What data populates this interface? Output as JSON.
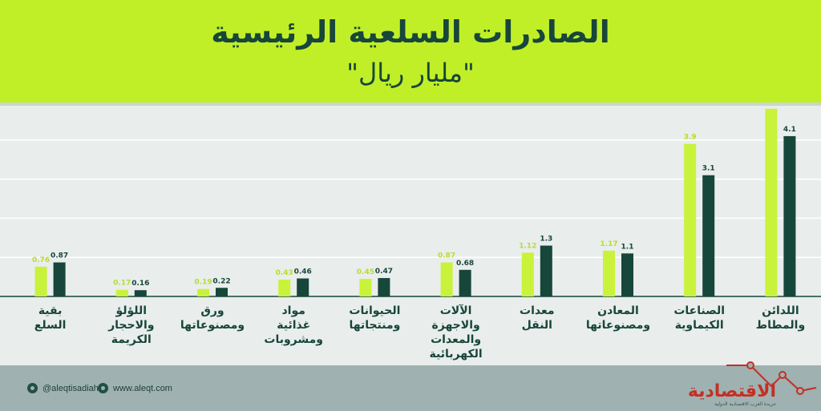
{
  "header": {
    "title": "الصادرات السلعية الرئيسية",
    "subtitle": "\"مليار ريال\""
  },
  "colors": {
    "header_bg": "#c1ef27",
    "series_2021": "#c9f23a",
    "series_2022": "#17463a",
    "footer_bg": "#9fb1b1",
    "brand": "#c42f24"
  },
  "chart_data": {
    "type": "bar",
    "title": "الصادرات السلعية الرئيسية",
    "subtitle": "\"مليار ريال\"",
    "categories": [
      "بقية السلع",
      "اللؤلؤ والاحجار الكريمة",
      "ورق ومصنوعاتها",
      "مواد غذائية ومشروبات",
      "الحيوانات ومنتجاتها",
      "الآلات والاجهزة والمعدات الكهربائية",
      "معدات النقل",
      "المعادن ومصنوعاتها",
      "الصناعات الكيماوية",
      "اللدائن والمطاط"
    ],
    "category_lines": [
      [
        "بقية",
        "السلع"
      ],
      [
        "اللؤلؤ",
        "والاحجار",
        "الكريمة"
      ],
      [
        "ورق",
        "ومصنوعاتها"
      ],
      [
        "مواد",
        "غذائية",
        "ومشروبات"
      ],
      [
        "الحيوانات",
        "ومنتجاتها"
      ],
      [
        "الآلات",
        "والاجهزة",
        "والمعدات",
        "الكهربائية"
      ],
      [
        "معدات",
        "النقل"
      ],
      [
        "المعادن",
        "ومصنوعاتها"
      ],
      [
        "الصناعات",
        "الكيماوية"
      ],
      [
        "اللدائن",
        "والمطاط"
      ]
    ],
    "series": [
      {
        "values": [
          0.76,
          0.17,
          0.19,
          0.43,
          0.45,
          0.87,
          1.12,
          1.17,
          3.9,
          4.8
        ],
        "color": "#c9f23a",
        "label_color": "#b7dd2c"
      },
      {
        "values": [
          0.87,
          0.16,
          0.22,
          0.46,
          0.47,
          0.68,
          1.3,
          1.1,
          3.1,
          4.1
        ],
        "color": "#17463a",
        "label_color": "#17463a"
      }
    ],
    "ylim": [
      0,
      5
    ],
    "grid": true,
    "legend": "none",
    "xlabel": "",
    "ylabel": ""
  },
  "footer": {
    "twitter": "@aleqtisadiah",
    "website": "www.aleqt.com",
    "brand": "الاقتصادية",
    "brand_sub": "جريدة العرب الاقتصادية الدولية"
  }
}
